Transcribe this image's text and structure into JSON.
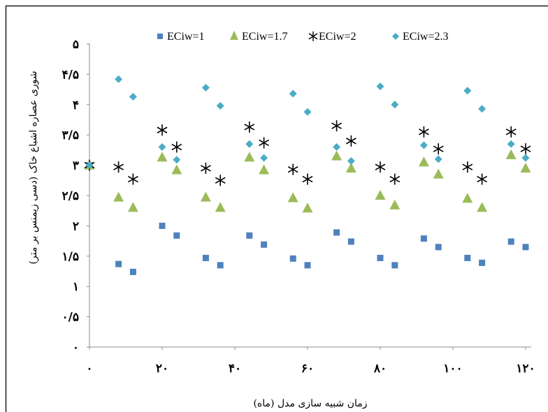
{
  "colors": {
    "ECiw=1": "#4f81bd",
    "ECiw=1.7": "#9bbb59",
    "ECiw=2": "#000000",
    "ECiw=2.3": "#4bacc6"
  },
  "chart_data": {
    "type": "scatter",
    "title": "",
    "xlabel": "زمان شبیه سازی مدل (ماه)",
    "ylabel": "شوری عصاره اشباع خاک (دسی زیمنس بر متر)",
    "xlim": [
      0,
      120
    ],
    "ylim": [
      0,
      5
    ],
    "x_ticks": [
      0,
      20,
      40,
      60,
      80,
      100,
      120
    ],
    "x_tick_labels": [
      "۰",
      "۲۰",
      "۴۰",
      "۶۰",
      "۸۰",
      "۱۰۰",
      "۱۲۰"
    ],
    "y_ticks": [
      0,
      0.5,
      1,
      1.5,
      2,
      2.5,
      3,
      3.5,
      4,
      4.5,
      5
    ],
    "y_tick_labels": [
      "۰",
      "۰/۵",
      "۱",
      "۱/۵",
      "۲",
      "۲/۵",
      "۳",
      "۳/۵",
      "۴",
      "۴/۵",
      "۵"
    ],
    "grid": false,
    "legend_position": "top",
    "series": [
      {
        "name": "ECiw=1",
        "marker": "square",
        "points": [
          [
            0,
            3.0
          ],
          [
            8,
            1.37
          ],
          [
            12,
            1.24
          ],
          [
            20,
            2.0
          ],
          [
            24,
            1.84
          ],
          [
            32,
            1.47
          ],
          [
            36,
            1.35
          ],
          [
            44,
            1.84
          ],
          [
            48,
            1.69
          ],
          [
            56,
            1.46
          ],
          [
            60,
            1.35
          ],
          [
            68,
            1.89
          ],
          [
            72,
            1.74
          ],
          [
            80,
            1.47
          ],
          [
            84,
            1.35
          ],
          [
            92,
            1.79
          ],
          [
            96,
            1.65
          ],
          [
            104,
            1.47
          ],
          [
            108,
            1.39
          ],
          [
            116,
            1.74
          ],
          [
            120,
            1.65
          ]
        ]
      },
      {
        "name": "ECiw=1.7",
        "marker": "triangle",
        "points": [
          [
            0,
            3.0
          ],
          [
            8,
            2.47
          ],
          [
            12,
            2.3
          ],
          [
            20,
            3.13
          ],
          [
            24,
            2.92
          ],
          [
            32,
            2.47
          ],
          [
            36,
            2.3
          ],
          [
            44,
            3.13
          ],
          [
            48,
            2.92
          ],
          [
            56,
            2.46
          ],
          [
            60,
            2.29
          ],
          [
            68,
            3.15
          ],
          [
            72,
            2.95
          ],
          [
            80,
            2.5
          ],
          [
            84,
            2.34
          ],
          [
            92,
            3.05
          ],
          [
            96,
            2.85
          ],
          [
            104,
            2.45
          ],
          [
            108,
            2.3
          ],
          [
            116,
            3.17
          ],
          [
            120,
            2.95
          ]
        ]
      },
      {
        "name": "ECiw=2",
        "marker": "asterisk",
        "points": [
          [
            0,
            3.0
          ],
          [
            8,
            2.97
          ],
          [
            12,
            2.77
          ],
          [
            20,
            3.58
          ],
          [
            24,
            3.3
          ],
          [
            32,
            2.95
          ],
          [
            36,
            2.75
          ],
          [
            44,
            3.63
          ],
          [
            48,
            3.37
          ],
          [
            56,
            2.93
          ],
          [
            60,
            2.77
          ],
          [
            68,
            3.65
          ],
          [
            72,
            3.4
          ],
          [
            80,
            2.97
          ],
          [
            84,
            2.77
          ],
          [
            92,
            3.55
          ],
          [
            96,
            3.27
          ],
          [
            104,
            2.97
          ],
          [
            108,
            2.77
          ],
          [
            116,
            3.55
          ],
          [
            120,
            3.27
          ]
        ]
      },
      {
        "name": "ECiw=2.3",
        "marker": "diamond",
        "points": [
          [
            0,
            3.0
          ],
          [
            8,
            4.42
          ],
          [
            12,
            4.13
          ],
          [
            20,
            3.3
          ],
          [
            24,
            3.09
          ],
          [
            32,
            4.28
          ],
          [
            36,
            3.98
          ],
          [
            44,
            3.35
          ],
          [
            48,
            3.12
          ],
          [
            56,
            4.18
          ],
          [
            60,
            3.88
          ],
          [
            68,
            3.3
          ],
          [
            72,
            3.07
          ],
          [
            80,
            4.3
          ],
          [
            84,
            4.0
          ],
          [
            92,
            3.33
          ],
          [
            96,
            3.1
          ],
          [
            104,
            4.23
          ],
          [
            108,
            3.93
          ],
          [
            116,
            3.35
          ],
          [
            120,
            3.12
          ]
        ]
      }
    ]
  }
}
